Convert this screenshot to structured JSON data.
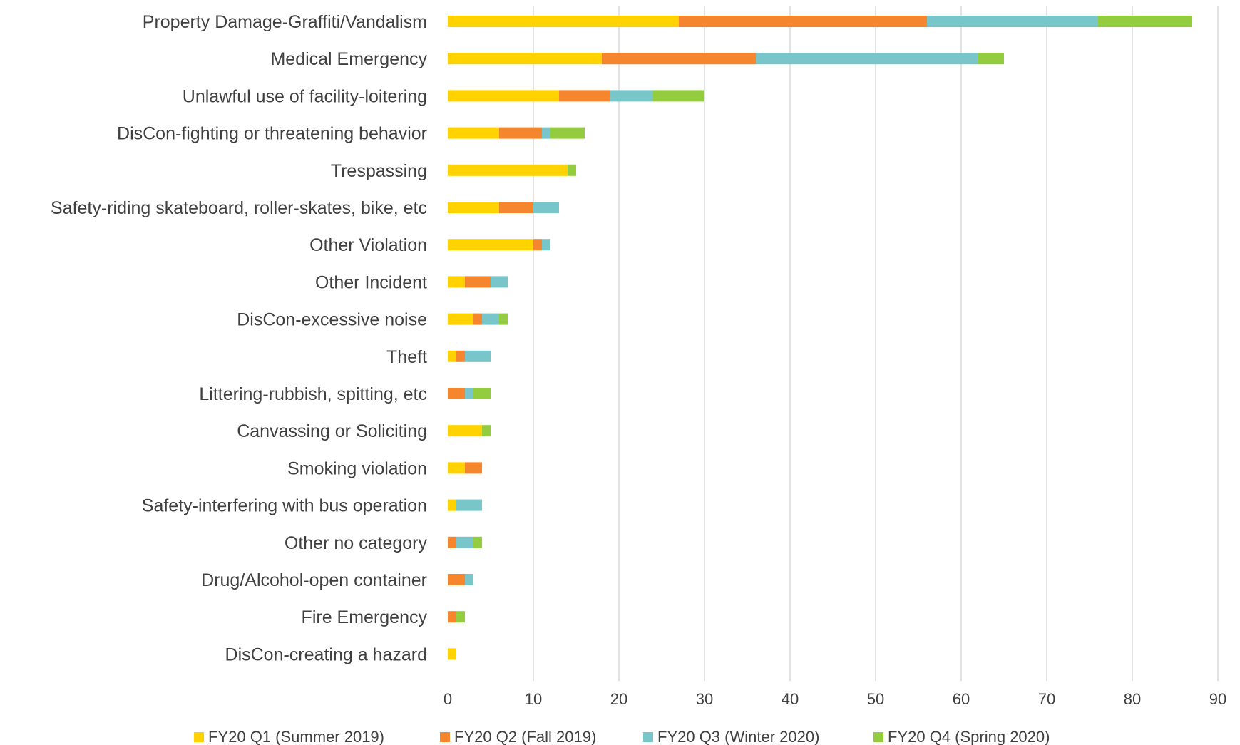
{
  "chart_data": {
    "type": "bar",
    "orientation": "horizontal",
    "stacked": true,
    "categories": [
      "Property Damage-Graffiti/Vandalism",
      "Medical Emergency",
      "Unlawful use of facility-loitering",
      "DisCon-fighting or threatening behavior",
      "Trespassing",
      "Safety-riding skateboard, roller-skates, bike, etc",
      "Other Violation",
      "Other Incident",
      "DisCon-excessive noise",
      "Theft",
      "Littering-rubbish, spitting, etc",
      "Canvassing or Soliciting",
      "Smoking violation",
      "Safety-interfering with bus operation",
      "Other no category",
      "Drug/Alcohol-open container",
      "Fire Emergency",
      "DisCon-creating a hazard"
    ],
    "series": [
      {
        "name": "FY20 Q1 (Summer 2019)",
        "color": "#FFD200",
        "values": [
          27,
          18,
          13,
          6,
          14,
          6,
          10,
          2,
          3,
          1,
          0,
          4,
          2,
          1,
          0,
          0,
          0,
          1
        ]
      },
      {
        "name": "FY20 Q2 (Fall 2019)",
        "color": "#F5862D",
        "values": [
          29,
          18,
          6,
          5,
          0,
          4,
          1,
          3,
          1,
          1,
          2,
          0,
          2,
          0,
          1,
          2,
          1,
          0
        ]
      },
      {
        "name": "FY20 Q3 (Winter 2020)",
        "color": "#79C6CA",
        "values": [
          20,
          26,
          5,
          1,
          0,
          3,
          1,
          2,
          2,
          3,
          1,
          0,
          0,
          3,
          2,
          1,
          0,
          0
        ]
      },
      {
        "name": "FY20 Q4 (Spring 2020)",
        "color": "#93CC3E",
        "values": [
          11,
          3,
          6,
          4,
          1,
          0,
          0,
          0,
          1,
          0,
          2,
          1,
          0,
          0,
          1,
          0,
          1,
          0
        ]
      }
    ],
    "xlim": [
      0,
      90
    ],
    "xticks": [
      0,
      10,
      20,
      30,
      40,
      50,
      60,
      70,
      80,
      90
    ],
    "title": "",
    "xlabel": "",
    "ylabel": "",
    "grid": "vertical",
    "legend": "bottom"
  }
}
